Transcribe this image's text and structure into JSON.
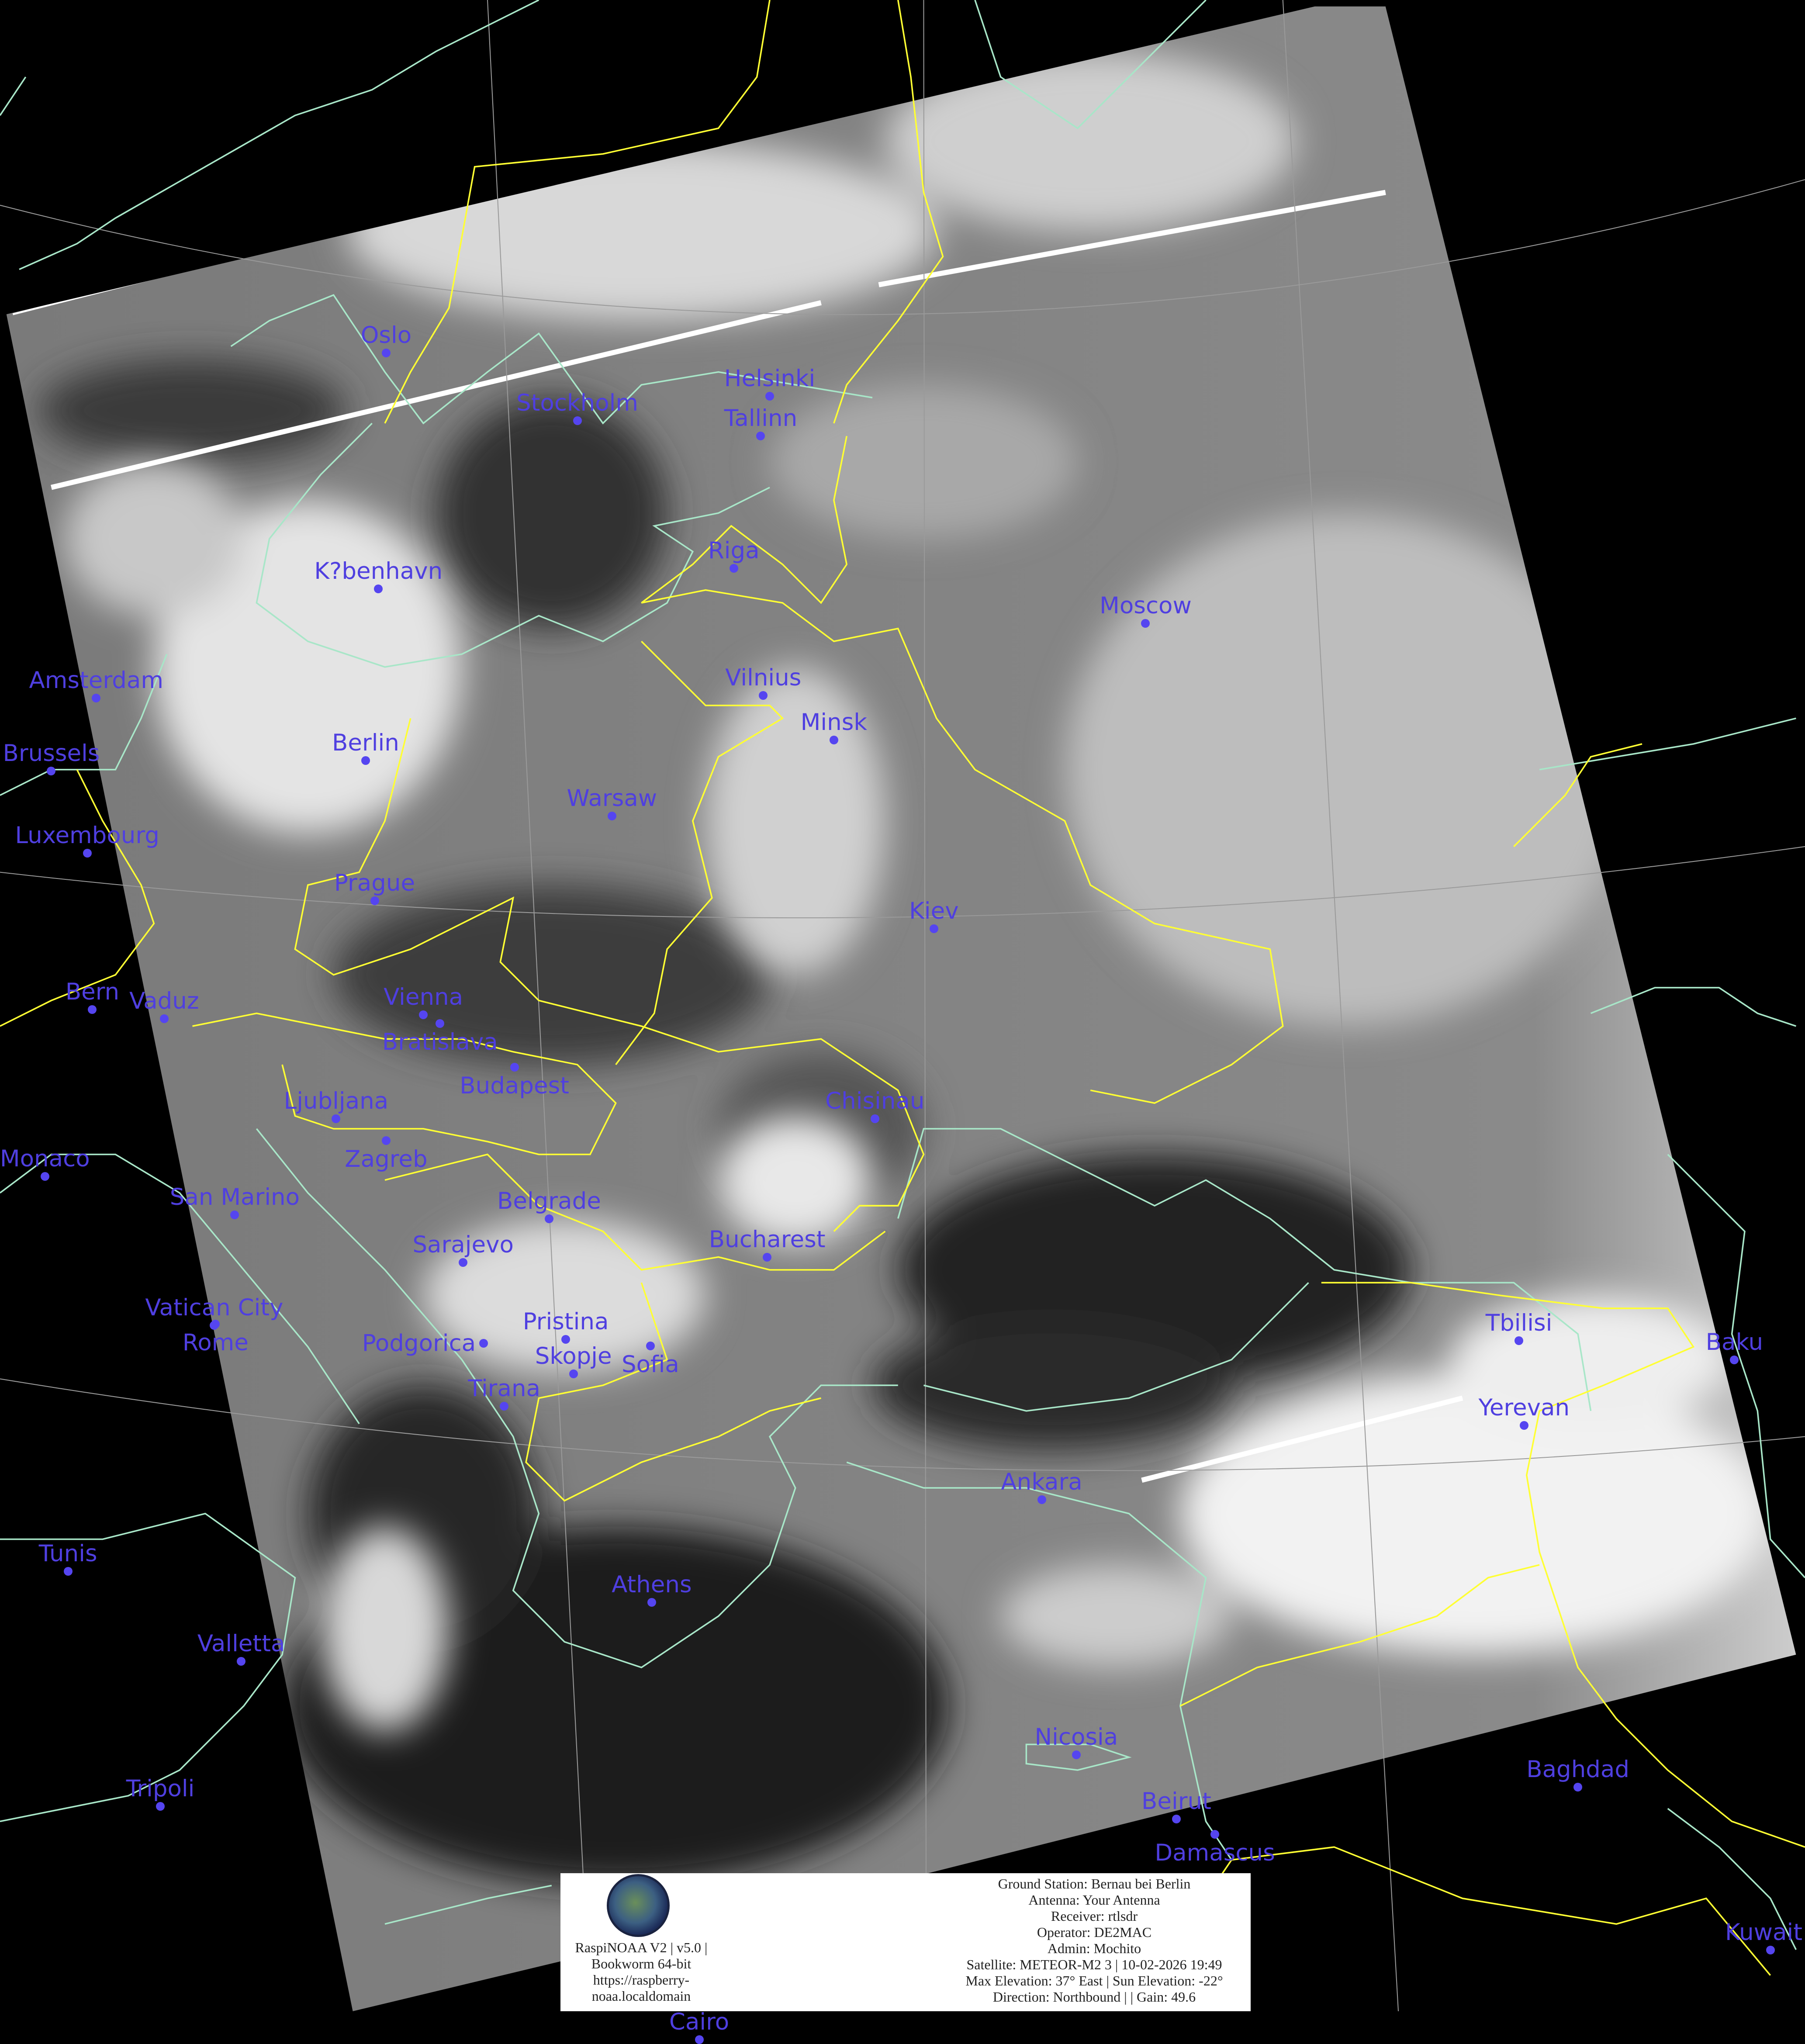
{
  "map": {
    "colors": {
      "city": "#4f3fe0",
      "borders": "#ffff33",
      "coastlines": "#a8e6c8",
      "graticule": "#9a9a9a"
    },
    "cities": [
      "Oslo",
      "Stockholm",
      "Helsinki",
      "Tallinn",
      "Riga",
      "K?benhavn",
      "Moscow",
      "Amsterdam",
      "Vilnius",
      "Minsk",
      "Brussels",
      "Berlin",
      "Warsaw",
      "Luxembourg",
      "Prague",
      "Kiev",
      "Bern",
      "Vaduz",
      "Vienna",
      "Bratislava",
      "Budapest",
      "Ljubljana",
      "Zagreb",
      "Chisinau",
      "Monaco",
      "San Marino",
      "Belgrade",
      "Sarajevo",
      "Bucharest",
      "Rome",
      "Vatican City",
      "Podgorica",
      "Pristina",
      "Sofia",
      "Skopje",
      "Tirana",
      "Tbilisi",
      "Baku",
      "Yerevan",
      "Ankara",
      "Tunis",
      "Athens",
      "Valletta",
      "Nicosia",
      "Baghdad",
      "Tripoli",
      "Beirut",
      "Damascus",
      "Cairo",
      "Kuwait"
    ]
  },
  "info": {
    "logo": "RaspiNOAA logo",
    "software": [
      "RaspiNOAA V2 | v5.0 |",
      "Bookworm 64-bit",
      "https://raspberry-",
      "noaa.localdomain"
    ],
    "station": [
      "Ground Station: Bernau bei Berlin",
      "Antenna: Your Antenna",
      "Receiver: rtlsdr",
      "Operator: DE2MAC",
      "Admin: Mochito",
      "Satellite: METEOR-M2 3 | 10-02-2026 19:49",
      "Max Elevation: 37° East | Sun Elevation: -22°",
      "Direction: Northbound | | Gain: 49.6"
    ]
  }
}
